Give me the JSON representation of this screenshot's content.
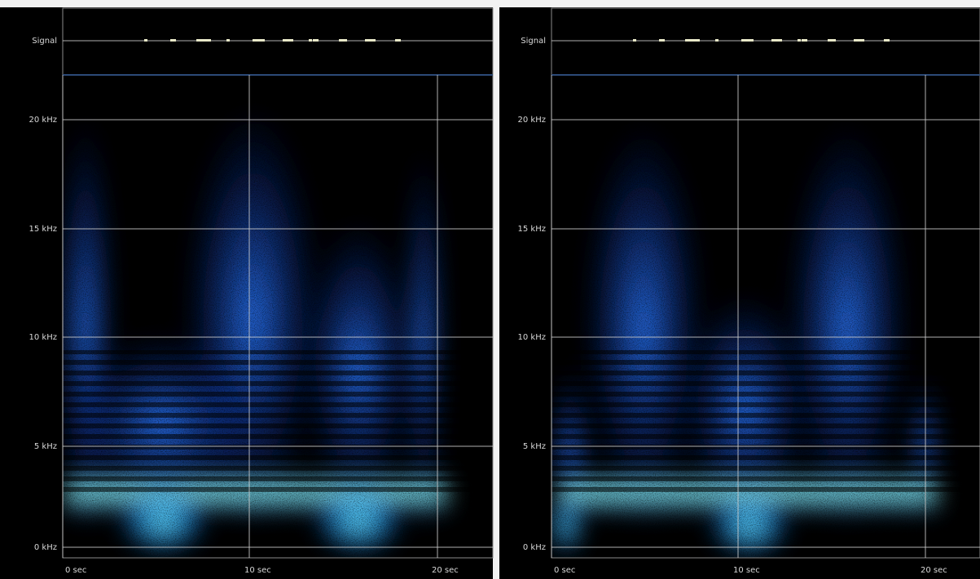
{
  "panels": [
    {
      "signal_label": "Signal",
      "y_labels": [
        "20 kHz",
        "15 kHz",
        "10 kHz",
        "5 kHz",
        "0 kHz"
      ],
      "x_labels": [
        "0 sec",
        "10 sec",
        "20 sec"
      ]
    },
    {
      "signal_label": "Signal",
      "y_labels": [
        "20 kHz",
        "15 kHz",
        "10 kHz",
        "5 kHz",
        "0 kHz"
      ],
      "x_labels": [
        "0 sec",
        "10 sec",
        "20 sec"
      ]
    }
  ]
}
